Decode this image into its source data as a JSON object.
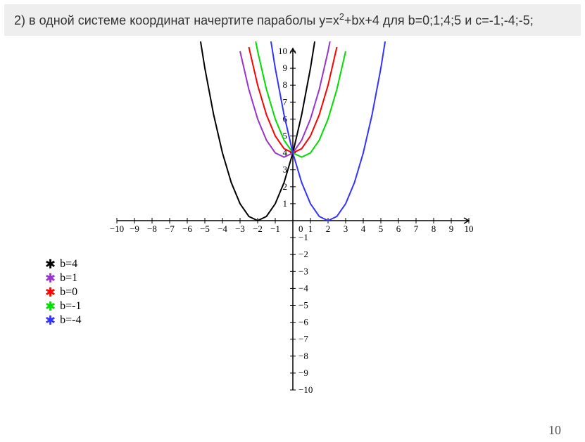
{
  "header": {
    "text_pre": "2) в одной системе координат начертите параболы y=x",
    "sup": "2",
    "text_post": "+bx+4 для b=0;1;4;5 и с=-1;-4;-5;",
    "bg": "#eeeeee",
    "color": "#333333",
    "fontsize": 18
  },
  "footer": {
    "page_number": "10"
  },
  "chart": {
    "type": "line",
    "xlim": [
      -10,
      10
    ],
    "ylim": [
      -10,
      10
    ],
    "xtick_step": 1,
    "ytick_step": 1,
    "background_color": "#ffffff",
    "axis_color": "#000000",
    "tick_length": 4,
    "tick_label_fontsize": 13,
    "line_width": 2,
    "series": [
      {
        "b": 4,
        "color": "#000000",
        "label": "b=4",
        "points": [
          [
            -6,
            16
          ],
          [
            -5.5,
            12.25
          ],
          [
            -5,
            9
          ],
          [
            -4.5,
            6.25
          ],
          [
            -4,
            4
          ],
          [
            -3.5,
            2.25
          ],
          [
            -3,
            1
          ],
          [
            -2.5,
            0.25
          ],
          [
            -2,
            0
          ],
          [
            -1.5,
            0.25
          ],
          [
            -1,
            1
          ],
          [
            -0.5,
            2.25
          ],
          [
            0,
            4
          ],
          [
            0.5,
            6.25
          ],
          [
            1,
            9
          ],
          [
            1.5,
            12.25
          ]
        ]
      },
      {
        "b": 1,
        "color": "#9933cc",
        "label": "b=1",
        "points": [
          [
            -3,
            10
          ],
          [
            -2.5,
            7.75
          ],
          [
            -2,
            6
          ],
          [
            -1.5,
            4.75
          ],
          [
            -1,
            4
          ],
          [
            -0.5,
            3.75
          ],
          [
            0,
            4
          ],
          [
            0.5,
            4.75
          ],
          [
            1,
            6
          ],
          [
            1.5,
            7.75
          ],
          [
            2,
            10
          ],
          [
            2.3,
            11.59
          ]
        ]
      },
      {
        "b": 0,
        "color": "#ff0000",
        "label": "b=0",
        "points": [
          [
            -2.5,
            10.25
          ],
          [
            -2,
            8
          ],
          [
            -1.5,
            6.25
          ],
          [
            -1,
            5
          ],
          [
            -0.5,
            4.25
          ],
          [
            0,
            4
          ],
          [
            0.5,
            4.25
          ],
          [
            1,
            5
          ],
          [
            1.5,
            6.25
          ],
          [
            2,
            8
          ],
          [
            2.5,
            10.25
          ]
        ]
      },
      {
        "b": -1,
        "color": "#00dd00",
        "label": "b=-1",
        "points": [
          [
            -2.3,
            11.59
          ],
          [
            -2,
            10
          ],
          [
            -1.5,
            7.75
          ],
          [
            -1,
            6
          ],
          [
            -0.5,
            4.75
          ],
          [
            0,
            4
          ],
          [
            0.5,
            3.75
          ],
          [
            1,
            4
          ],
          [
            1.5,
            4.75
          ],
          [
            2,
            6
          ],
          [
            2.5,
            7.75
          ],
          [
            3,
            10
          ]
        ]
      },
      {
        "b": -4,
        "color": "#3333ff",
        "label": "b=-4",
        "points": [
          [
            -1.5,
            12.25
          ],
          [
            -1,
            9
          ],
          [
            -0.5,
            6.25
          ],
          [
            0,
            4
          ],
          [
            0.5,
            2.25
          ],
          [
            1,
            1
          ],
          [
            1.5,
            0.25
          ],
          [
            2,
            0
          ],
          [
            2.5,
            0.25
          ],
          [
            3,
            1
          ],
          [
            3.5,
            2.25
          ],
          [
            4,
            4
          ],
          [
            4.5,
            6.25
          ],
          [
            5,
            9
          ],
          [
            5.5,
            12.25
          ],
          [
            6,
            16
          ]
        ]
      }
    ]
  },
  "legend": {
    "marker_glyph": "✱",
    "label_fontsize": 16,
    "items": [
      {
        "color": "#000000",
        "label": "b=4"
      },
      {
        "color": "#9933cc",
        "label": "b=1"
      },
      {
        "color": "#ff0000",
        "label": "b=0"
      },
      {
        "color": "#00dd00",
        "label": "b=-1"
      },
      {
        "color": "#3333ff",
        "label": "b=-4"
      }
    ]
  }
}
